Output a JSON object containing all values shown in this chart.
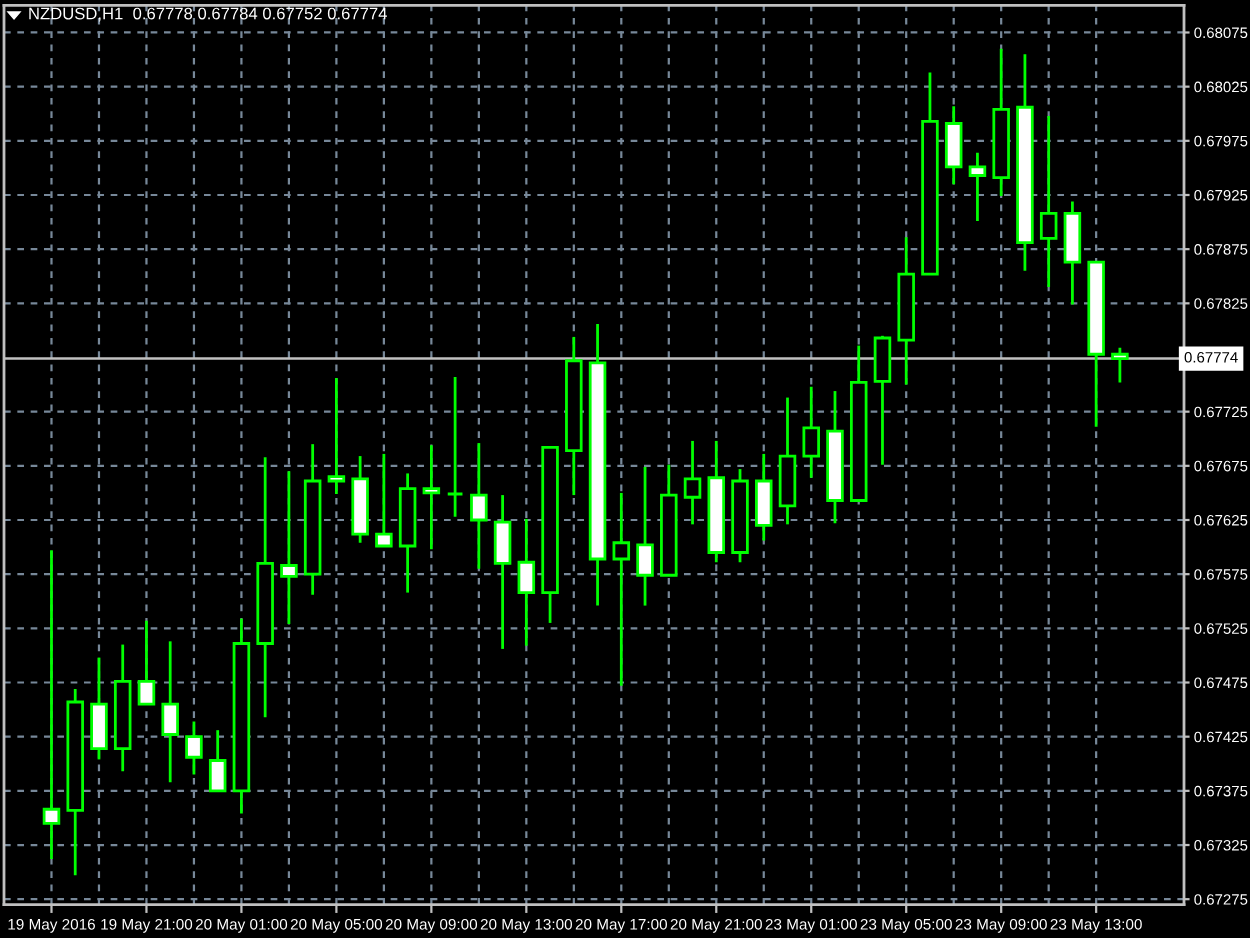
{
  "chart_data": {
    "type": "candlestick",
    "title": "NZDUSD,H1  0.67778 0.67784 0.67752 0.67774",
    "categories": [
      "19 May 2016",
      null,
      null,
      null,
      "19 May 21:00",
      null,
      null,
      null,
      "20 May 01:00",
      null,
      null,
      null,
      "20 May 05:00",
      null,
      null,
      null,
      "20 May 09:00",
      null,
      null,
      null,
      "20 May 13:00",
      null,
      null,
      null,
      "20 May 17:00",
      null,
      null,
      null,
      "20 May 21:00",
      null,
      null,
      null,
      "23 May 01:00",
      null,
      null,
      null,
      "23 May 05:00",
      null,
      null,
      null,
      "23 May 09:00",
      null,
      null,
      null,
      "23 May 13:00",
      null
    ],
    "ohlc": [
      [
        0.67358,
        0.67597,
        0.67312,
        0.67345
      ],
      [
        0.67357,
        0.67469,
        0.67297,
        0.67457
      ],
      [
        0.67455,
        0.67498,
        0.67404,
        0.67414
      ],
      [
        0.67414,
        0.6751,
        0.67393,
        0.67476
      ],
      [
        0.67476,
        0.67532,
        0.67455,
        0.67455
      ],
      [
        0.67455,
        0.67513,
        0.67383,
        0.67427
      ],
      [
        0.67425,
        0.67439,
        0.6739,
        0.67406
      ],
      [
        0.67403,
        0.67431,
        0.67375,
        0.67375
      ],
      [
        0.67375,
        0.67534,
        0.67354,
        0.67511
      ],
      [
        0.67511,
        0.67683,
        0.67443,
        0.67585
      ],
      [
        0.67583,
        0.6767,
        0.67529,
        0.67573
      ],
      [
        0.67575,
        0.67695,
        0.67556,
        0.67661
      ],
      [
        0.67665,
        0.67756,
        0.67649,
        0.67661
      ],
      [
        0.67663,
        0.67684,
        0.67604,
        0.67612
      ],
      [
        0.67612,
        0.67686,
        0.67601,
        0.67601
      ],
      [
        0.67601,
        0.67668,
        0.67558,
        0.67654
      ],
      [
        0.67654,
        0.67694,
        0.67598,
        0.6765
      ],
      [
        0.67649,
        0.67757,
        0.67628,
        0.67649
      ],
      [
        0.67648,
        0.67696,
        0.6758,
        0.67625
      ],
      [
        0.67623,
        0.67648,
        0.67506,
        0.67585
      ],
      [
        0.67586,
        0.67626,
        0.67509,
        0.67558
      ],
      [
        0.67558,
        0.67692,
        0.6753,
        0.67692
      ],
      [
        0.67689,
        0.67794,
        0.67648,
        0.67772
      ],
      [
        0.6777,
        0.67806,
        0.67546,
        0.67589
      ],
      [
        0.67589,
        0.6765,
        0.67472,
        0.67604
      ],
      [
        0.67602,
        0.67674,
        0.67546,
        0.67574
      ],
      [
        0.67574,
        0.67676,
        0.67574,
        0.67648
      ],
      [
        0.67646,
        0.67698,
        0.67621,
        0.67663
      ],
      [
        0.67664,
        0.67698,
        0.67586,
        0.67595
      ],
      [
        0.67595,
        0.67672,
        0.67586,
        0.67661
      ],
      [
        0.67661,
        0.67686,
        0.67606,
        0.6762
      ],
      [
        0.67638,
        0.67738,
        0.67621,
        0.67684
      ],
      [
        0.67684,
        0.67748,
        0.67664,
        0.6771
      ],
      [
        0.67707,
        0.67744,
        0.67622,
        0.67643
      ],
      [
        0.67643,
        0.67786,
        0.67643,
        0.67752
      ],
      [
        0.67753,
        0.67795,
        0.67676,
        0.67793
      ],
      [
        0.67791,
        0.67886,
        0.6775,
        0.67852
      ],
      [
        0.67852,
        0.68038,
        0.67852,
        0.67993
      ],
      [
        0.67991,
        0.68007,
        0.67935,
        0.67951
      ],
      [
        0.67951,
        0.67964,
        0.67901,
        0.67943
      ],
      [
        0.67941,
        0.6806,
        0.67924,
        0.68004
      ],
      [
        0.68006,
        0.68055,
        0.67855,
        0.67881
      ],
      [
        0.67885,
        0.67998,
        0.6784,
        0.67908
      ],
      [
        0.67908,
        0.67919,
        0.67824,
        0.67863
      ],
      [
        0.67863,
        0.67863,
        0.67711,
        0.67778
      ],
      [
        0.67778,
        0.67784,
        0.67752,
        0.67774
      ]
    ],
    "color": "#00ff00",
    "colors": [
      "#ffffff",
      "#000000",
      "#ffffff",
      "#000000",
      "#ffffff",
      "#ffffff",
      "#ffffff",
      "#ffffff",
      "#000000",
      "#000000",
      "#ffffff",
      "#000000",
      "#ffffff",
      "#ffffff",
      "#ffffff",
      "#000000",
      "#ffffff",
      "#00ff00",
      "#ffffff",
      "#ffffff",
      "#ffffff",
      "#000000",
      "#000000",
      "#ffffff",
      "#000000",
      "#ffffff",
      "#000000",
      "#000000",
      "#ffffff",
      "#000000",
      "#ffffff",
      "#000000",
      "#000000",
      "#ffffff",
      "#000000",
      "#000000",
      "#000000",
      "#000000",
      "#ffffff",
      "#ffffff",
      "#000000",
      "#ffffff",
      "#000000",
      "#ffffff",
      "#ffffff",
      "#ffffff"
    ],
    "ylim": [
      0.6727,
      0.681
    ],
    "yticks": [
      0.67275,
      0.67325,
      0.67375,
      0.67425,
      0.67475,
      0.67525,
      0.67575,
      0.67625,
      0.67675,
      0.67725,
      0.67825,
      0.67875,
      0.67925,
      0.67975,
      0.68025,
      0.68075
    ],
    "ref_lines": [
      {
        "axis": "y",
        "value": 0.67774,
        "label": "0.67774",
        "color": "#c0c0c0"
      }
    ],
    "grid": true
  }
}
